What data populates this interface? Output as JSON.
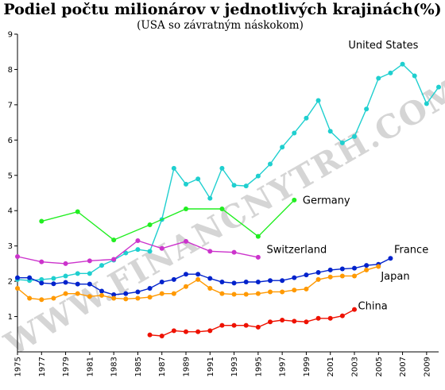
{
  "chart_data": {
    "type": "line",
    "title": "Podiel počtu milionárov v jednotlivých krajinách(%)",
    "subtitle": "(USA so závratným náskokom)",
    "watermark": "WWW.FINANCNYTRH.COM",
    "xlim": [
      1975,
      2010
    ],
    "ylim": [
      0,
      9
    ],
    "grid": false,
    "x_ticks": [
      1975,
      1977,
      1979,
      1981,
      1983,
      1985,
      1987,
      1989,
      1991,
      1993,
      1995,
      1997,
      1999,
      2001,
      2003,
      2005,
      2007,
      2009
    ],
    "y_ticks": [
      1,
      2,
      3,
      4,
      5,
      6,
      7,
      8,
      9
    ],
    "series": [
      {
        "name": "United States",
        "color": "#1fcfcf",
        "label_at": [
          2002.5,
          8.6
        ],
        "x": [
          1975,
          1976,
          1977,
          1978,
          1979,
          1980,
          1981,
          1982,
          1983,
          1984,
          1985,
          1986,
          1987,
          1988,
          1989,
          1990,
          1991,
          1992,
          1993,
          1994,
          1995,
          1996,
          1997,
          1998,
          1999,
          2000,
          2001,
          2002,
          2003,
          2004,
          2005,
          2006,
          2007,
          2008,
          2009,
          2010
        ],
        "values": [
          2.05,
          2.02,
          2.05,
          2.08,
          2.15,
          2.22,
          2.22,
          2.45,
          2.6,
          2.8,
          2.9,
          2.85,
          3.75,
          5.2,
          4.75,
          4.9,
          4.35,
          5.2,
          4.72,
          4.7,
          4.98,
          5.32,
          5.8,
          6.2,
          6.62,
          7.12,
          6.25,
          5.92,
          6.1,
          6.88,
          7.75,
          7.9,
          8.15,
          7.82,
          7.03,
          7.5
        ]
      },
      {
        "name": "Germany",
        "color": "#22ee22",
        "label_at": [
          1998.7,
          4.2
        ],
        "x": [
          1977,
          1980,
          1983,
          1986,
          1989,
          1992,
          1995,
          1998
        ],
        "values": [
          3.7,
          3.97,
          3.17,
          3.6,
          4.05,
          4.05,
          3.27,
          4.3
        ]
      },
      {
        "name": "Switzerland",
        "color": "#cc33cc",
        "label_at": [
          1995.7,
          2.8
        ],
        "x": [
          1975,
          1977,
          1979,
          1981,
          1983,
          1985,
          1987,
          1989,
          1991,
          1993,
          1995
        ],
        "values": [
          2.7,
          2.55,
          2.5,
          2.58,
          2.62,
          3.15,
          2.93,
          3.13,
          2.85,
          2.82,
          2.68
        ]
      },
      {
        "name": "France",
        "color": "#0022cc",
        "label_at": [
          2006.3,
          2.8
        ],
        "x": [
          1975,
          1976,
          1977,
          1978,
          1979,
          1980,
          1981,
          1982,
          1983,
          1984,
          1985,
          1986,
          1987,
          1988,
          1989,
          1990,
          1991,
          1992,
          1993,
          1994,
          1995,
          1996,
          1997,
          1998,
          1999,
          2000,
          2001,
          2002,
          2003,
          2004,
          2005,
          2006
        ],
        "values": [
          2.1,
          2.1,
          1.95,
          1.93,
          1.97,
          1.92,
          1.92,
          1.72,
          1.62,
          1.65,
          1.7,
          1.8,
          1.98,
          2.05,
          2.2,
          2.2,
          2.08,
          1.98,
          1.95,
          1.98,
          1.98,
          2.02,
          2.02,
          2.1,
          2.18,
          2.25,
          2.32,
          2.35,
          2.37,
          2.45,
          2.48,
          2.65
        ]
      },
      {
        "name": "Japan",
        "color": "#ff9900",
        "label_at": [
          2005.2,
          2.05
        ],
        "x": [
          1975,
          1976,
          1977,
          1978,
          1979,
          1980,
          1981,
          1982,
          1983,
          1984,
          1985,
          1986,
          1987,
          1988,
          1989,
          1990,
          1991,
          1992,
          1993,
          1994,
          1995,
          1996,
          1997,
          1998,
          1999,
          2000,
          2001,
          2002,
          2003,
          2004,
          2005
        ],
        "values": [
          1.8,
          1.52,
          1.48,
          1.52,
          1.65,
          1.65,
          1.57,
          1.6,
          1.52,
          1.5,
          1.52,
          1.55,
          1.65,
          1.65,
          1.85,
          2.05,
          1.8,
          1.65,
          1.63,
          1.63,
          1.65,
          1.7,
          1.7,
          1.75,
          1.78,
          2.05,
          2.12,
          2.15,
          2.15,
          2.32,
          2.42
        ]
      },
      {
        "name": "China",
        "color": "#ee1100",
        "label_at": [
          2003.3,
          1.2
        ],
        "x": [
          1986,
          1987,
          1988,
          1989,
          1990,
          1991,
          1992,
          1993,
          1994,
          1995,
          1996,
          1997,
          1998,
          1999,
          2000,
          2001,
          2002,
          2003
        ],
        "values": [
          0.48,
          0.45,
          0.6,
          0.57,
          0.57,
          0.6,
          0.75,
          0.75,
          0.75,
          0.7,
          0.85,
          0.9,
          0.87,
          0.85,
          0.95,
          0.95,
          1.02,
          1.2
        ]
      }
    ]
  }
}
